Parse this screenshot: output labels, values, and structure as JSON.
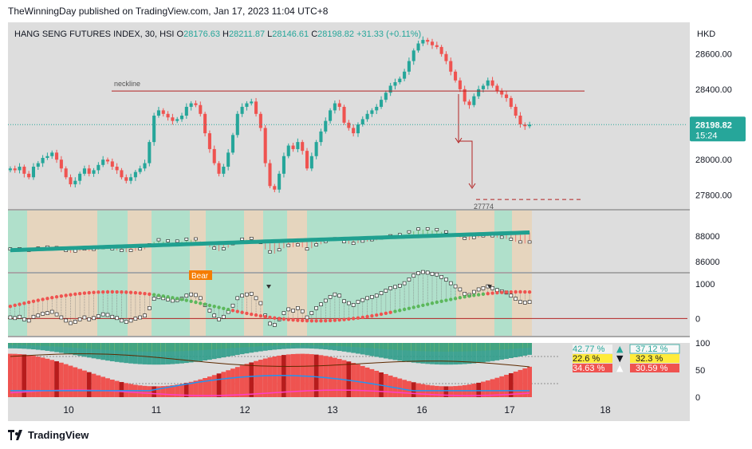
{
  "header": {
    "published": "TheWinningDay published on TradingView.com, Jan 17, 2023 11:04 UTC+8"
  },
  "legend": {
    "symbol": "HANG SENG FUTURES INDEX, 30, HSI",
    "o_label": "O",
    "o": "28176.63",
    "h_label": "H",
    "h": "28211.87",
    "l_label": "L",
    "l": "28146.61",
    "c_label": "C",
    "c": "28198.82",
    "change": "+31.33 (+0.11%)"
  },
  "currency": "HKD",
  "price_badge": {
    "price": "28198.82",
    "countdown": "15:24"
  },
  "annotations": {
    "neckline": "neckline",
    "target": "27774",
    "bear": "Bear"
  },
  "colors": {
    "up": "#26a69a",
    "down": "#ef5350",
    "pane_bg": "#d9d9d9",
    "green_zone": "#a8e0c8",
    "tan_zone": "#e8d4b8",
    "badge": "#26a69a",
    "neckline": "#b22222"
  },
  "footer": {
    "brand": "TradingView"
  },
  "chart_data": [
    {
      "type": "candlestick",
      "title": "HANG SENG FUTURES INDEX, 30, HSI",
      "x_ticks": [
        "10",
        "11",
        "12",
        "13",
        "16",
        "17",
        "18"
      ],
      "y_ticks": [
        "28600.00",
        "28400.00",
        "28000.00",
        "27800.00"
      ],
      "ylim": [
        27720,
        28780
      ],
      "neckline": 28390,
      "target": 27774,
      "last_price": 28198.82,
      "close_series": [
        27950,
        27940,
        27960,
        27920,
        27900,
        27960,
        27980,
        28010,
        28020,
        28040,
        28000,
        27950,
        27900,
        27860,
        27880,
        27920,
        27950,
        27920,
        27940,
        27970,
        28000,
        27990,
        27960,
        27940,
        27900,
        27880,
        27900,
        27930,
        27950,
        27980,
        28100,
        28250,
        28280,
        28260,
        28240,
        28220,
        28230,
        28250,
        28300,
        28320,
        28310,
        28260,
        28150,
        28060,
        27980,
        27920,
        27960,
        28040,
        28140,
        28260,
        28300,
        28320,
        28330,
        28260,
        28180,
        27980,
        27850,
        27830,
        27920,
        28020,
        28080,
        28060,
        28100,
        28050,
        27950,
        28020,
        28100,
        28160,
        28220,
        28280,
        28320,
        28300,
        28210,
        28180,
        28150,
        28200,
        28230,
        28260,
        28280,
        28300,
        28340,
        28380,
        28420,
        28440,
        28460,
        28500,
        28560,
        28620,
        28660,
        28680,
        28670,
        28650,
        28640,
        28600,
        28560,
        28500,
        28450,
        28400,
        28330,
        28310,
        28360,
        28400,
        28420,
        28450,
        28420,
        28390,
        28370,
        28350,
        28300,
        28250,
        28200,
        28190,
        28199
      ]
    },
    {
      "type": "ribbon",
      "y_ticks": [
        "88000",
        "86000"
      ],
      "ylim": [
        85200,
        90000
      ]
    },
    {
      "type": "oscillator",
      "y_ticks": [
        "1000",
        "0"
      ],
      "ylim": [
        -500,
        1300
      ],
      "zero_line": 0
    },
    {
      "type": "bar",
      "y_ticks": [
        "100",
        "50",
        "0"
      ],
      "ylim": [
        0,
        100
      ],
      "labels": [
        {
          "left": "42.77 %",
          "right": "37.12 %"
        },
        {
          "left": "22.6 %",
          "right": "32.3 %"
        },
        {
          "left": "34.63 %",
          "right": "30.59 %"
        }
      ]
    }
  ]
}
